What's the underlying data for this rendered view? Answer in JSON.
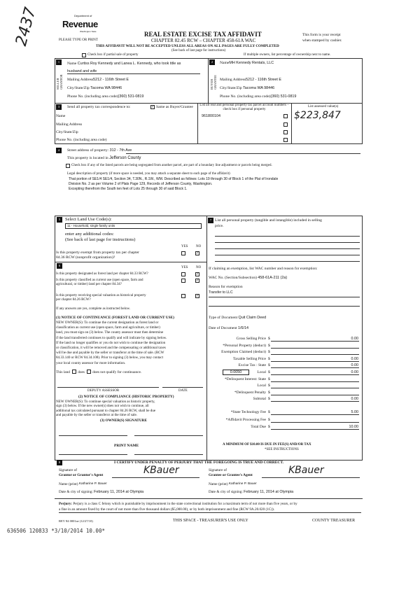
{
  "handwritten_number": "2437",
  "logo": {
    "top": "Department of",
    "main": "Revenue",
    "sub": "Washington State"
  },
  "please_type": "PLEASE TYPE OR PRINT",
  "title": "REAL ESTATE EXCISE TAX AFFIDAVIT",
  "chapter": "CHAPTER 82.45 RCW – CHAPTER 458-61A WAC",
  "warning": "THIS AFFIDAVIT WILL NOT BE ACCEPTED UNLESS ALL AREAS ON ALL PAGES ARE FULLY COMPLETED",
  "see_back": "(See back of last page for instructions)",
  "receipt_note": [
    "This form is your receipt",
    "when stamped by cashier."
  ],
  "partial_sale": "Check box if partial sale of property",
  "multiple_owners": "If multiple owners, list percentage of ownership next to name.",
  "seller": {
    "num": "1",
    "side_label": "SELLER GRANTOR",
    "name_label": "Name",
    "name": "Curtiss Roy Kennedy and Lanea L. Kennedy, who took title as",
    "name2": "husband and wife",
    "address_label": "Mailing Address",
    "address": "5212 - 116th Street E",
    "city_label": "City/State/Zip",
    "city": "Tacoma WA 98446",
    "phone_label": "Phone No. (including area code)",
    "phone": "(360) 531-0819"
  },
  "buyer": {
    "num": "2",
    "side_label": "BUYER GRANTEE",
    "name_label": "Name",
    "name": "MH Kennedy Rentals, LLC",
    "address_label": "Mailing Address",
    "address": "5212 - 116th Street E",
    "city_label": "City/State/Zip",
    "city": "Tacoma WA 98446",
    "phone_label": "Phone No. (including area code)",
    "phone": "(360) 531-0819"
  },
  "correspondence": {
    "num": "3",
    "label": "Send all property tax correspondence to:",
    "same_label": "Same as Buyer/Grantee",
    "same_checked": true,
    "name_label": "Name",
    "address_label": "Mailing Address",
    "city_label": "City/State/Zip",
    "phone_label": "Phone No. (including area code)"
  },
  "parcels": {
    "header": "List all real and personal property tax parcel account numbers – check box if personal property",
    "numbers": [
      "961800104"
    ],
    "assessed_header": "List assessed value(s)",
    "assessed": "$223,847"
  },
  "property": {
    "num": "4",
    "street_label": "Street address of property:",
    "street": "312 - 7th Ave",
    "county_label": "This property is located in",
    "county": "Jefferson County",
    "segregated": "Check box if any of the listed parcels are being segregated from another parcel, are part of a boundary line adjustment or parcels being merged.",
    "legal_label": "Legal description of property (if more space is needed, you may attach a separate sheet to each page of the affidavit)",
    "legal": [
      "That portion of SE1/4 SE1/4, Section 34, T.30N., R.1W., WM.  Described as follows:  Lots 19 through 30 of Block 1 of the Plat of Irondale",
      "Division No. 2 as per Volume 2 of Plats Page 129, Records of Jefferson County, Washington.",
      "Excepting therefrom the South ten feet of Lots 25 through 30 of said Block 1."
    ]
  },
  "land_use": {
    "num": "5",
    "label": "Select Land Use Code(s):",
    "code": "11 - Household, single family units",
    "additional": "enter any additional codes:",
    "see_back": "(See back of last page for instructions)",
    "yes": "YES",
    "no": "NO",
    "exempt_q": [
      "Is this property exempt from property tax per chapter",
      "84.36 RCW (nonprofit organization)?"
    ],
    "exempt_answer": "NO"
  },
  "section6": {
    "num": "6",
    "yes": "YES",
    "no": "NO",
    "questions": [
      {
        "q": [
          "Is this property designated as forest land per chapter 84.33 RCW?"
        ],
        "answer": "NO"
      },
      {
        "q": [
          "Is this property classified as current use (open space, farm and",
          "agricultural, or timber) land per chapter 84.34?"
        ],
        "answer": "NO"
      },
      {
        "q": [
          "Is this property receiving special valuation as historical property",
          "per chapter 84.26 RCW?"
        ],
        "answer": "NO"
      }
    ],
    "if_yes": "If any answers are yes, complete as instructed below.",
    "notice1_title": "(1) NOTICE OF CONTINUANCE (FOREST LAND OR CURRENT USE)",
    "notice1": [
      "NEW OWNER(S): To continue the current designation as forest land or",
      "classification as current use (open space, farm and agriculture, or timber)",
      "land, you must sign on (3) below. The county assessor must then determine",
      "if the land transferred continues to qualify and will indicate by signing below.",
      "If the land no longer qualifies or you do not wish to continue the designation",
      "or classification, it will be removed and the compensating or additional taxes",
      "will be due and payable by the seller or transferor at the time of sale. (RCW",
      "84.33.140 or RCW 84.34.108). Prior to signing (3) below, you may contact",
      "your local county assessor for more information."
    ],
    "this_land": "This land",
    "does": "does",
    "does_not": "does not",
    "qualify": "qualify for continuance.",
    "deputy": "DEPUTY ASSESSOR",
    "date": "DATE",
    "notice2_title": "(2) NOTICE OF COMPLIANCE (HISTORIC PROPERTY)",
    "notice2": [
      "NEW OWNER(S): To continue special valuation as historic property,",
      "sign (3) below. If the new owner(s) does not wish to continue, all",
      "additional tax calculated pursuant to chapter 84.26 RCW, shall be due",
      "and payable by the seller or transferor at the time of sale."
    ],
    "owner_sig": "(3) OWNER(S) SIGNATURE",
    "print_name": "PRINT NAME"
  },
  "section7": {
    "num": "7",
    "label": [
      "List all  personal property (tangible and intangible) included in selling",
      "price."
    ],
    "exemption_label": "If claiming an exemption, list WAC number and reason for exemption:",
    "wac_label": "WAC No. (Section/Subsection)",
    "wac": "458-61A-211 (2a)",
    "reason_label": "Reason for exemption",
    "reason": "Transfer to LLC",
    "doc_type_label": "Type of Document",
    "doc_type": "Quit Claim Deed",
    "doc_date_label": "Date of Document",
    "doc_date": "1/6/14",
    "local_rate": "0.0050",
    "tax_rows": [
      {
        "label": "Gross Selling Price",
        "value": "0.00"
      },
      {
        "label": "*Personal Property (deduct)",
        "value": ""
      },
      {
        "label": "Exemption Claimed (deduct)",
        "value": ""
      },
      {
        "label": "Taxable Selling Price",
        "value": "0.00"
      },
      {
        "label": "Excise Tax : State",
        "value": "0.00"
      },
      {
        "label": "Local",
        "value": "0.00"
      },
      {
        "label": "*Delinquent Interest: State",
        "value": ""
      },
      {
        "label": "Local",
        "value": ""
      },
      {
        "label": "*Delinquent Penalty",
        "value": ""
      },
      {
        "label": "Subtotal",
        "value": "0.00"
      },
      {
        "label": "*State Technology Fee",
        "value": "5.00"
      },
      {
        "label": "*Affidavit Processing Fee",
        "value": ""
      },
      {
        "label": "Total Due",
        "value": "10.00"
      }
    ],
    "minimum": "A MINIMUM OF $10.00 IS DUE IN FEE(S) AND/OR TAX",
    "see_instr": "*SEE INSTRUCTIONS"
  },
  "certify": {
    "num": "8",
    "text": "I CERTIFY UNDER PENALTY OF PERJURY THAT THE FOREGOING IS TRUE AND CORRECT.",
    "grantor_sig_label": [
      "Signature of",
      "Grantor or Grantor's Agent"
    ],
    "grantee_sig_label": [
      "Signature of",
      "Grantee or Grantee's Agent"
    ],
    "name_label": "Name (print)",
    "grantor_name": "Katharine P. Bauer",
    "grantee_name": "Katharine P. Bauer",
    "date_label": "Date & city of signing:",
    "grantor_date": "February 11, 2014 at Olympia",
    "grantee_date": "February 11, 2014 at Olympia",
    "signature": "KBauer"
  },
  "perjury": {
    "label": "Perjury:",
    "text": "Perjury is a class C felony which is punishable by imprisonment in the state correctional institution for a maximum term of not more than five years, or by",
    "text2": "a fine in an amount fixed by the court of not more than five thousand dollars ($5,000.00), or by both imprisonment and fine (RCW 9A.20.020 (1C))."
  },
  "footer": {
    "rev": "REV 84 0001ae (12/27/10)",
    "treasurer_space": "THIS SPACE - TREASURER'S USE ONLY",
    "county_treasurer": "COUNTY TREASURER"
  },
  "stamp": "636506 120833 *3/10/2014 10.00*"
}
